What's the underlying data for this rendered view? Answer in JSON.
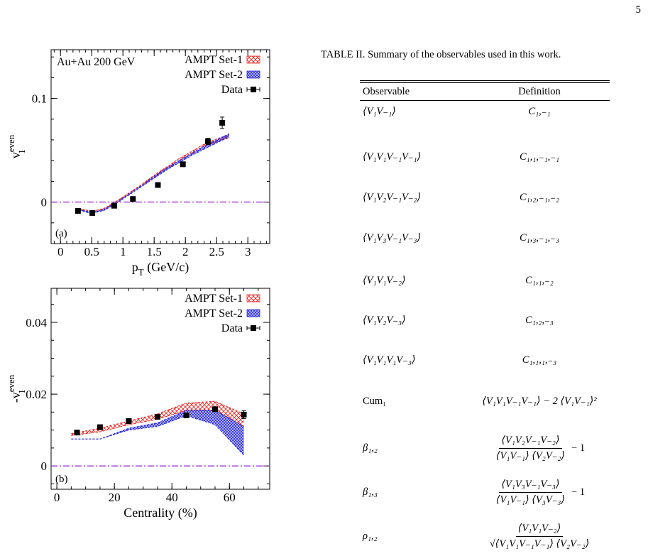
{
  "page_number": "5",
  "chart_data": [
    {
      "panel": "(a)",
      "type": "line",
      "annotation": "Au+Au 200 GeV",
      "xlabel": "p_T (GeV/c)",
      "ylabel": "v_1^even",
      "xlim": [
        -0.15,
        3.35
      ],
      "ylim": [
        -0.04,
        0.147
      ],
      "x_ticks": [
        0,
        0.5,
        1,
        1.5,
        2,
        2.5,
        3
      ],
      "x_tick_labels": [
        "0",
        "0.5",
        "1",
        "1.5",
        "2",
        "2.5",
        "3"
      ],
      "y_ticks": [
        0,
        0.1
      ],
      "y_tick_labels": [
        "0",
        "0.1"
      ],
      "legend_position": "top-right",
      "legend": [
        "AMPT Set-1",
        "AMPT Set-2",
        "Data"
      ],
      "reference_line_y": 0,
      "series": [
        {
          "name": "AMPT Set-1",
          "color": "#e8231f",
          "x": [
            0.3,
            0.5,
            0.7,
            0.9,
            1.1,
            1.3,
            1.5,
            1.7,
            1.9,
            2.1,
            2.3,
            2.5,
            2.7
          ],
          "lower": [
            -0.007,
            -0.01,
            -0.007,
            0.0,
            0.008,
            0.016,
            0.024,
            0.032,
            0.04,
            0.047,
            0.054,
            0.058,
            0.062
          ],
          "upper": [
            -0.006,
            -0.009,
            -0.006,
            0.001,
            0.009,
            0.017,
            0.026,
            0.034,
            0.042,
            0.049,
            0.056,
            0.061,
            0.065
          ]
        },
        {
          "name": "AMPT Set-2",
          "color": "#2a2adc",
          "x": [
            0.3,
            0.5,
            0.7,
            0.9,
            1.1,
            1.3,
            1.5,
            1.7,
            1.9,
            2.1,
            2.3,
            2.5,
            2.7
          ],
          "lower": [
            -0.008,
            -0.011,
            -0.008,
            -0.001,
            0.007,
            0.015,
            0.023,
            0.031,
            0.038,
            0.045,
            0.051,
            0.057,
            0.063
          ],
          "upper": [
            -0.007,
            -0.01,
            -0.007,
            0.0,
            0.008,
            0.016,
            0.025,
            0.033,
            0.04,
            0.047,
            0.054,
            0.06,
            0.066
          ]
        },
        {
          "name": "Data",
          "color": "#000000",
          "x": [
            0.28,
            0.51,
            0.86,
            1.16,
            1.56,
            1.96,
            2.36,
            2.59
          ],
          "y": [
            -0.0085,
            -0.0105,
            -0.0035,
            0.003,
            0.0165,
            0.0365,
            0.0585,
            0.0765
          ],
          "yerr": [
            0.001,
            0.001,
            0.001,
            0.001,
            0.0012,
            0.0015,
            0.003,
            0.0055
          ]
        }
      ]
    },
    {
      "panel": "(b)",
      "type": "line",
      "xlabel": "Centrality (%)",
      "ylabel": "-v_1^even",
      "xlim": [
        -2,
        74
      ],
      "ylim": [
        -0.0065,
        0.0495
      ],
      "x_ticks": [
        0,
        20,
        40,
        60
      ],
      "x_tick_labels": [
        "0",
        "20",
        "40",
        "60"
      ],
      "y_ticks": [
        0,
        0.02,
        0.04
      ],
      "y_tick_labels": [
        "0",
        "0.02",
        "0.04"
      ],
      "legend_position": "top-right",
      "legend": [
        "AMPT Set-1",
        "AMPT Set-2",
        "Data"
      ],
      "reference_line_y": 0,
      "series": [
        {
          "name": "AMPT Set-1",
          "color": "#e8231f",
          "x": [
            5,
            15,
            25,
            35,
            45,
            55,
            65
          ],
          "lower": [
            0.0085,
            0.0095,
            0.0115,
            0.013,
            0.0155,
            0.0155,
            0.011
          ],
          "upper": [
            0.009,
            0.0105,
            0.0125,
            0.0145,
            0.0175,
            0.018,
            0.0145
          ]
        },
        {
          "name": "AMPT Set-2",
          "color": "#2a2adc",
          "x": [
            5,
            15,
            25,
            35,
            45,
            55,
            65
          ],
          "lower": [
            0.0075,
            0.0075,
            0.01,
            0.011,
            0.014,
            0.0115,
            0.003
          ],
          "upper": [
            0.0075,
            0.0075,
            0.0105,
            0.012,
            0.0155,
            0.0155,
            0.011
          ]
        },
        {
          "name": "Data",
          "color": "#000000",
          "x": [
            7,
            15,
            25,
            35,
            45,
            55,
            65
          ],
          "y": [
            0.0093,
            0.0108,
            0.0125,
            0.0137,
            0.0141,
            0.0158,
            0.0143
          ],
          "yerr": [
            0.0004,
            0.0004,
            0.0004,
            0.0004,
            0.0004,
            0.0005,
            0.0011
          ]
        }
      ]
    }
  ],
  "table": {
    "caption": "TABLE II. Summary of the observables used in this work.",
    "headers": [
      "Observable",
      "Definition"
    ],
    "rows": [
      {
        "observable": "⟨V₁V₋₁⟩",
        "definition": "C₁,₋₁"
      },
      {
        "observable": "⟨V₁V₁V₋₁V₋₁⟩",
        "definition": "C₁,₁,₋₁,₋₁"
      },
      {
        "observable": "⟨V₁V₂V₋₁V₋₂⟩",
        "definition": "C₁,₂,₋₁,₋₂"
      },
      {
        "observable": "⟨V₁V₃V₋₁V₋₃⟩",
        "definition": "C₁,₃,₋₁,₋₃"
      },
      {
        "observable": "⟨V₁V₁V₋₂⟩",
        "definition": "C₁,₁,₋₂"
      },
      {
        "observable": "⟨V₁V₂V₋₃⟩",
        "definition": "C₁,₂,₋₃"
      },
      {
        "observable": "⟨V₁V₁V₁V₋₃⟩",
        "definition": "C₁,₁,₁,₋₃"
      },
      {
        "observable": "Cum₁",
        "definition": "⟨V₁V₁V₋₁V₋₁⟩ − 2 ⟨V₁V₋₁⟩²"
      },
      {
        "observable": "β₁,₂",
        "numerator": "⟨V₁V₂V₋₁V₋₂⟩",
        "denominator": "⟨V₁V₋₁⟩ ⟨V₂V₋₂⟩",
        "suffix": "− 1"
      },
      {
        "observable": "β₁,₃",
        "numerator": "⟨V₁V₃V₋₁V₋₃⟩",
        "denominator": "⟨V₁V₋₁⟩ ⟨V₃V₋₃⟩",
        "suffix": "− 1"
      },
      {
        "observable": "ρ₁,₂",
        "numerator": "⟨V₁V₁V₋₂⟩",
        "denominator": "√⟨V₁V₁V₋₁V₋₁⟩ ⟨V₂V₋₂⟩"
      }
    ]
  }
}
